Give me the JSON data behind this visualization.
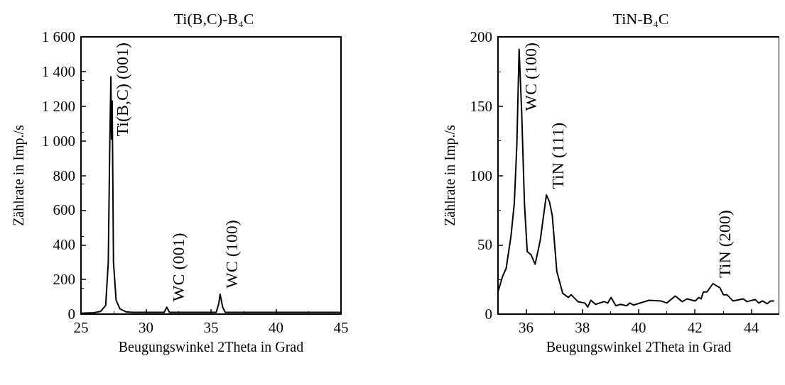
{
  "chart_data": [
    {
      "type": "line",
      "title": "Ti(B,C)-B₄C",
      "xlabel": "Beugungswinkel 2Theta in Grad",
      "ylabel": "Zählrate in Imp./s",
      "x": [
        25,
        26,
        26.5,
        26.9,
        27.1,
        27.2,
        27.3,
        27.35,
        27.4,
        27.5,
        27.7,
        28,
        28.5,
        29,
        31.4,
        31.6,
        31.8,
        35.4,
        35.6,
        35.7,
        35.9,
        36.1,
        45
      ],
      "series": [
        {
          "color": "#000000",
          "values": [
            5,
            8,
            15,
            50,
            300,
            900,
            1370,
            1010,
            1230,
            300,
            80,
            30,
            12,
            10,
            10,
            40,
            10,
            10,
            60,
            115,
            40,
            10,
            10
          ]
        }
      ],
      "xlim": [
        25,
        45
      ],
      "xticks": [
        25,
        30,
        35,
        40,
        45
      ],
      "ylim": [
        0,
        1600
      ],
      "yticks": [
        0,
        200,
        400,
        600,
        800,
        {
          "value": 1000,
          "label": "1 000"
        },
        {
          "value": 1200,
          "label": "1 200"
        },
        {
          "value": 1400,
          "label": "1 400"
        },
        {
          "value": 1600,
          "label": "1 600"
        }
      ],
      "annotations": [
        {
          "text": "Ti(B,C) (001)",
          "x": 27.3,
          "y": 1370
        },
        {
          "text": "WC (001)",
          "x": 31.6,
          "y": 40
        },
        {
          "text": "WC (100)",
          "x": 35.7,
          "y": 115
        }
      ],
      "grid": false,
      "marker": "none",
      "line_style": "solid"
    },
    {
      "type": "line",
      "title": "TiN-B₄C",
      "xlabel": "Beugungswinkel 2Theta in Grad",
      "ylabel": "Zählrate in Imp./s",
      "x": [
        35,
        35.16,
        35.29,
        35.46,
        35.58,
        35.67,
        35.75,
        35.84,
        35.94,
        36.04,
        36.17,
        36.32,
        36.5,
        36.72,
        36.83,
        36.93,
        37.09,
        37.3,
        37.5,
        37.6,
        37.84,
        38.09,
        38.19,
        38.3,
        38.47,
        38.77,
        38.9,
        39.02,
        39.19,
        39.36,
        39.57,
        39.69,
        39.82,
        40.37,
        40.79,
        41,
        41.3,
        41.55,
        41.72,
        42.01,
        42.14,
        42.22,
        42.3,
        42.43,
        42.64,
        42.89,
        43.01,
        43.14,
        43.35,
        43.72,
        43.85,
        44.14,
        44.27,
        44.4,
        44.57,
        44.69,
        44.8
      ],
      "series": [
        {
          "color": "#000000",
          "values": [
            16,
            27,
            33,
            56,
            80,
            122,
            191,
            147,
            80,
            45,
            43,
            36,
            53,
            86,
            81,
            71,
            31,
            15,
            12,
            14,
            9,
            8,
            5,
            10,
            7,
            9,
            8,
            12,
            6,
            7,
            6,
            8,
            6.5,
            10,
            9.5,
            8,
            13,
            9,
            11,
            9.5,
            12,
            11,
            16,
            16,
            22,
            19,
            14,
            14,
            9.5,
            11,
            9,
            10.5,
            8,
            9.5,
            7.5,
            9.5,
            9.5
          ]
        }
      ],
      "xlim": [
        35,
        45
      ],
      "xticks": [
        36,
        38,
        40,
        42,
        44
      ],
      "ylim": [
        0,
        200
      ],
      "yticks": [
        0,
        50,
        100,
        150,
        200
      ],
      "annotations": [
        {
          "text": "WC (100)",
          "x": 35.75,
          "y": 191
        },
        {
          "text": "TiN (111)",
          "x": 36.72,
          "y": 86
        },
        {
          "text": "TiN (200)",
          "x": 42.64,
          "y": 22
        }
      ],
      "grid": false,
      "marker": "none",
      "line_style": "solid"
    }
  ]
}
